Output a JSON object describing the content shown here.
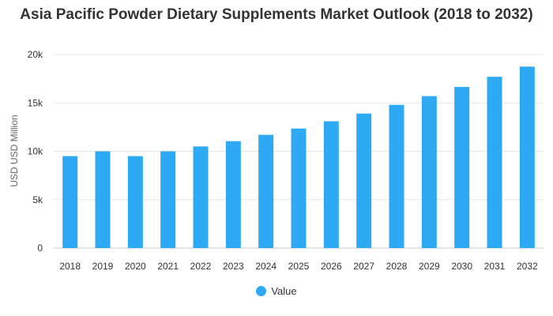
{
  "chart_data": {
    "type": "bar",
    "title": "Asia Pacific Powder Dietary Supplements Market Outlook (2018 to 2032)",
    "xlabel": "",
    "ylabel": "USD USD Million",
    "categories": [
      "2018",
      "2019",
      "2020",
      "2021",
      "2022",
      "2023",
      "2024",
      "2025",
      "2026",
      "2027",
      "2028",
      "2029",
      "2030",
      "2031",
      "2032"
    ],
    "series": [
      {
        "name": "Value",
        "values": [
          9500,
          10000,
          9500,
          10000,
          10500,
          11050,
          11700,
          12350,
          13100,
          13900,
          14800,
          15700,
          16650,
          17700,
          18750
        ]
      }
    ],
    "ylim": [
      0,
      20000
    ],
    "yticks": [
      {
        "value": 0,
        "label": "0"
      },
      {
        "value": 5000,
        "label": "5k"
      },
      {
        "value": 10000,
        "label": "10k"
      },
      {
        "value": 15000,
        "label": "15k"
      },
      {
        "value": 20000,
        "label": "20k"
      }
    ],
    "grid": true,
    "legend": "bottom-center",
    "colors": {
      "bar": "#2eaaf5",
      "grid": "#e6e6e6",
      "axis": "#cccccc"
    }
  }
}
